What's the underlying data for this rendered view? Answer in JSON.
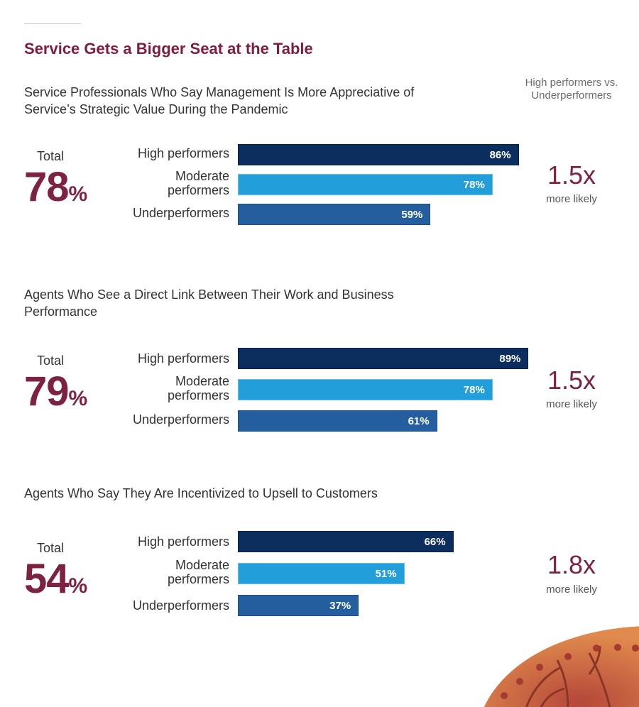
{
  "title": "Service Gets a Bigger Seat at the Table",
  "column_header": "High performers vs. Underperformers",
  "colors": {
    "high": "#0b2e5e",
    "moderate": "#229fda",
    "under": "#255e9e",
    "accent": "#7d2240"
  },
  "chart_data": [
    {
      "type": "bar",
      "title": "Service Professionals Who Say Management Is More Appreciative of Service’s Strategic Value During the Pandemic",
      "total_label": "Total",
      "total_value": 78,
      "categories": [
        "High performers",
        "Moderate performers",
        "Underperformers"
      ],
      "values": [
        86,
        78,
        59
      ],
      "value_labels": [
        "86%",
        "78%",
        "59%"
      ],
      "comparison": "1.5x",
      "comparison_sub": "more likely",
      "xlim": [
        0,
        100
      ]
    },
    {
      "type": "bar",
      "title": "Agents Who See a Direct Link Between Their Work and Business Performance",
      "total_label": "Total",
      "total_value": 79,
      "categories": [
        "High performers",
        "Moderate performers",
        "Underperformers"
      ],
      "values": [
        89,
        78,
        61
      ],
      "value_labels": [
        "89%",
        "78%",
        "61%"
      ],
      "comparison": "1.5x",
      "comparison_sub": "more likely",
      "xlim": [
        0,
        100
      ]
    },
    {
      "type": "bar",
      "title": "Agents Who Say They Are Incentivized to Upsell to Customers",
      "total_label": "Total",
      "total_value": 54,
      "categories": [
        "High performers",
        "Moderate performers",
        "Underperformers"
      ],
      "values": [
        66,
        51,
        37
      ],
      "value_labels": [
        "66%",
        "51%",
        "37%"
      ],
      "comparison": "1.8x",
      "comparison_sub": "more likely",
      "xlim": [
        0,
        100
      ]
    }
  ]
}
